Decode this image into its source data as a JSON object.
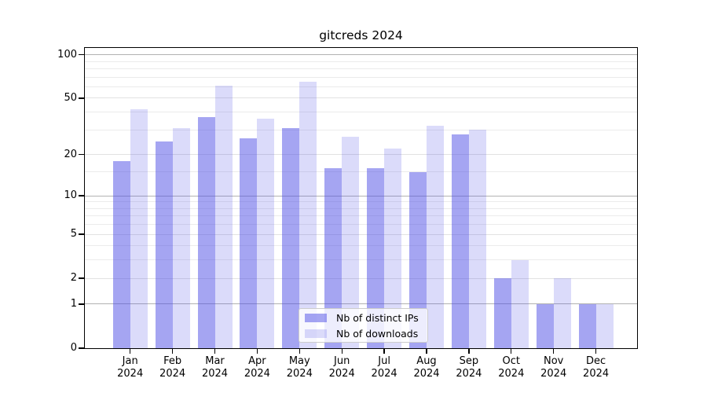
{
  "chart_data": {
    "type": "bar",
    "title": "gitcreds 2024",
    "categories": [
      "Jan",
      "Feb",
      "Mar",
      "Apr",
      "May",
      "Jun",
      "Jul",
      "Aug",
      "Sep",
      "Oct",
      "Nov",
      "Dec"
    ],
    "year_label": "2024",
    "series": [
      {
        "name": "Nb of distinct IPs",
        "values": [
          18,
          25,
          37,
          26,
          31,
          16,
          16,
          15,
          28,
          2,
          1,
          1
        ]
      },
      {
        "name": "Nb of downloads",
        "values": [
          42,
          31,
          61,
          36,
          65,
          27,
          22,
          32,
          30,
          3,
          2,
          1
        ]
      }
    ],
    "y_scale": "log1p",
    "ylim": [
      0,
      112
    ],
    "y_ticks": [
      0,
      1,
      2,
      5,
      10,
      20,
      50,
      100
    ],
    "y_gridlines_decade": [
      1,
      10,
      100
    ],
    "y_gridlines_mid": [
      2,
      5,
      20,
      50
    ],
    "y_gridlines_minor": [
      3,
      4,
      6,
      7,
      8,
      9,
      15,
      30,
      40,
      60,
      70,
      80,
      90
    ],
    "grid": true,
    "legend_position": "bottom-center",
    "xlabel": "",
    "ylabel": "",
    "colors": {
      "bar_base": "#4B4BE5",
      "series_alpha": [
        0.5,
        0.2
      ],
      "grid_decade": "#b2b2b2",
      "grid_mid": "#e2e2e2",
      "grid_minor": "#ebebeb",
      "text": "#000000",
      "background": "#ffffff"
    }
  }
}
